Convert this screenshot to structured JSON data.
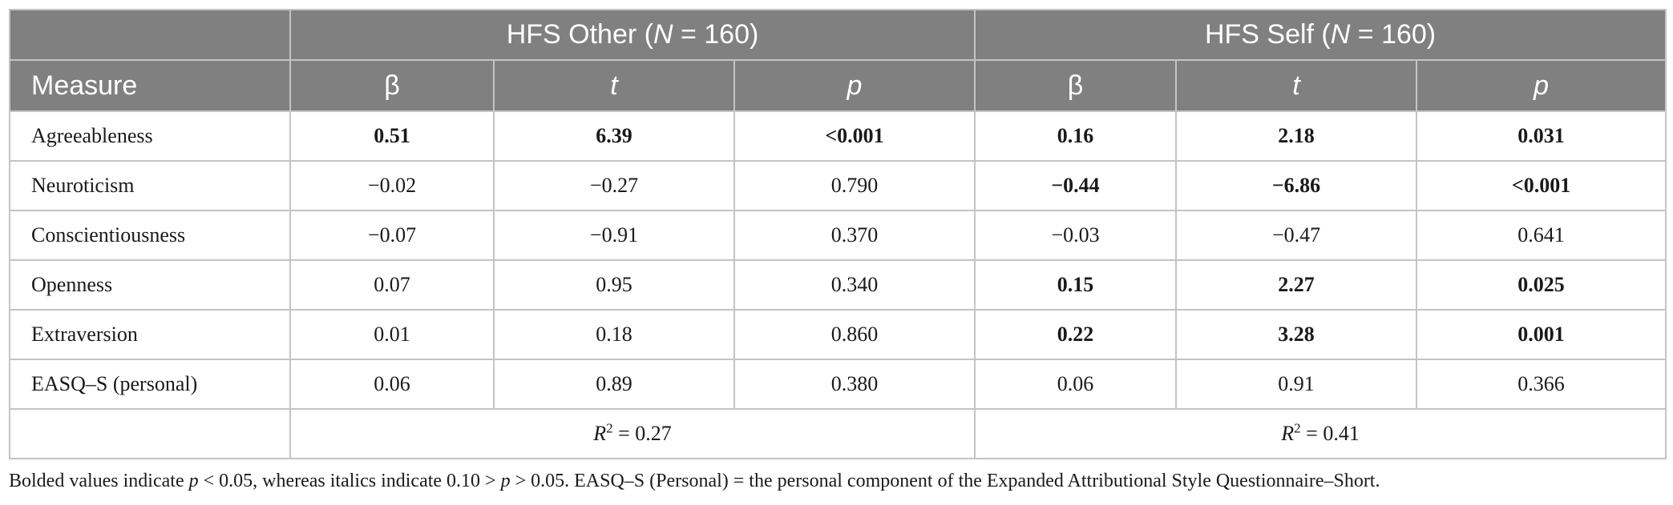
{
  "header": {
    "group1_prefix": "HFS Other (",
    "group1_n": "N",
    "group1_suffix": " = 160)",
    "group2_prefix": "HFS Self (",
    "group2_n": "N",
    "group2_suffix": " = 160)",
    "measure": "Measure",
    "beta": "β",
    "t": "t",
    "p": "p"
  },
  "rows": [
    {
      "measure": "Agreeableness",
      "other_beta": "0.51",
      "other_t": "6.39",
      "other_p": "<0.001",
      "self_beta": "0.16",
      "self_t": "2.18",
      "self_p": "0.031",
      "bold": {
        "other_beta": true,
        "other_t": true,
        "other_p": true,
        "self_beta": true,
        "self_t": true,
        "self_p": true
      }
    },
    {
      "measure": "Neuroticism",
      "other_beta": "−0.02",
      "other_t": "−0.27",
      "other_p": "0.790",
      "self_beta": "−0.44",
      "self_t": "−6.86",
      "self_p": "<0.001",
      "bold": {
        "other_beta": false,
        "other_t": false,
        "other_p": false,
        "self_beta": true,
        "self_t": true,
        "self_p": true
      }
    },
    {
      "measure": "Conscientiousness",
      "other_beta": "−0.07",
      "other_t": "−0.91",
      "other_p": "0.370",
      "self_beta": "−0.03",
      "self_t": "−0.47",
      "self_p": "0.641",
      "bold": {
        "other_beta": false,
        "other_t": false,
        "other_p": false,
        "self_beta": false,
        "self_t": false,
        "self_p": false
      }
    },
    {
      "measure": "Openness",
      "other_beta": "0.07",
      "other_t": "0.95",
      "other_p": "0.340",
      "self_beta": "0.15",
      "self_t": "2.27",
      "self_p": "0.025",
      "bold": {
        "other_beta": false,
        "other_t": false,
        "other_p": false,
        "self_beta": true,
        "self_t": true,
        "self_p": true
      }
    },
    {
      "measure": "Extraversion",
      "other_beta": "0.01",
      "other_t": "0.18",
      "other_p": "0.860",
      "self_beta": "0.22",
      "self_t": "3.28",
      "self_p": "0.001",
      "bold": {
        "other_beta": false,
        "other_t": false,
        "other_p": false,
        "self_beta": true,
        "self_t": true,
        "self_p": true
      }
    },
    {
      "measure": "EASQ–S (personal)",
      "other_beta": "0.06",
      "other_t": "0.89",
      "other_p": "0.380",
      "self_beta": "0.06",
      "self_t": "0.91",
      "self_p": "0.366",
      "bold": {
        "other_beta": false,
        "other_t": false,
        "other_p": false,
        "self_beta": false,
        "self_t": false,
        "self_p": false
      }
    }
  ],
  "r2": {
    "symbol": "R",
    "exp": "2",
    "other": " = 0.27",
    "self": " = 0.41"
  },
  "note": "Bolded values indicate p < 0.05, whereas italics indicate 0.10 > p > 0.05. EASQ–S (Personal) = the personal component of the Expanded Attributional Style Questionnaire–Short.",
  "colors": {
    "header_bg": "#808080",
    "header_text": "#ffffff",
    "grid": "#c4c4c4"
  }
}
